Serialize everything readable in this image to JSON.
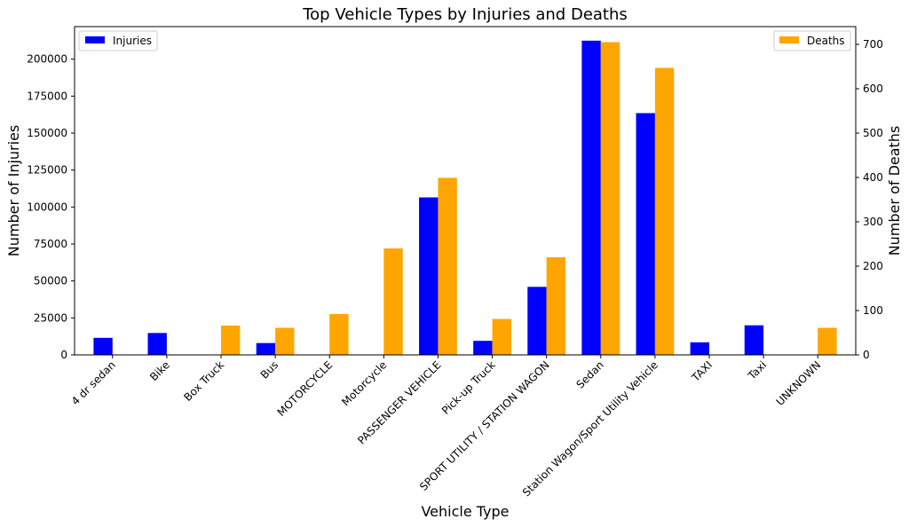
{
  "chart_data": {
    "type": "bar",
    "title": "Top Vehicle Types by Injuries and Deaths",
    "xlabel": "Vehicle Type",
    "ylabel": "Number of Injuries",
    "ylabel_right": "Number of Deaths",
    "categories": [
      "4 dr sedan",
      "Bike",
      "Box Truck",
      "Bus",
      "MOTORCYCLE",
      "Motorcycle",
      "PASSENGER VEHICLE",
      "Pick-up Truck",
      "SPORT UTILITY / STATION WAGON",
      "Sedan",
      "Station Wagon/Sport Utility Vehicle",
      "TAXI",
      "Taxi",
      "UNKNOWN"
    ],
    "series": [
      {
        "name": "Injuries",
        "axis": "left",
        "color": "#0000ff",
        "values": [
          11500,
          14800,
          0,
          8000,
          0,
          0,
          106500,
          9500,
          46000,
          212500,
          163500,
          8500,
          20000,
          0
        ]
      },
      {
        "name": "Deaths",
        "axis": "right",
        "color": "#ffa500",
        "values": [
          0,
          0,
          66,
          61,
          92,
          240,
          399,
          81,
          220,
          705,
          647,
          0,
          0,
          61
        ]
      }
    ],
    "ylim_left": [
      0,
      222000
    ],
    "yticks_left": [
      0,
      25000,
      50000,
      75000,
      100000,
      125000,
      150000,
      175000,
      200000
    ],
    "ylim_right": [
      0,
      740
    ],
    "yticks_right": [
      0,
      100,
      200,
      300,
      400,
      500,
      600,
      700
    ],
    "legend": [
      {
        "label": "Injuries",
        "placement": "top-left"
      },
      {
        "label": "Deaths",
        "placement": "top-right"
      }
    ],
    "grid": false
  }
}
